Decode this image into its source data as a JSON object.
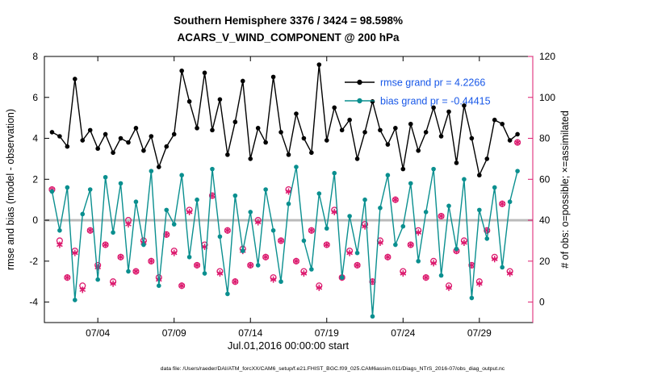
{
  "footer": {
    "data_file": "data file: /Users/raeder/DAI/ATM_forcXX/CAM6_setup/f.e21.FHIST_BGC.f09_025.CAM6assim.011/Diags_NTrS_2016-07/obs_diag_output.nc"
  },
  "colors": {
    "rmse": "#000000",
    "bias": "#0a8f8f",
    "obs": "#dc1a6e",
    "legend_text": "#1757e8",
    "zero_line": "#bbbbbb",
    "axes": "#000000"
  },
  "chart_data": {
    "type": "line",
    "title": "Southern Hemisphere 3376 / 3424 = 98.598%",
    "subtitle": "ACARS_V_WIND_COMPONENT @ 200 hPa",
    "xlabel": "Jul.01,2016 00:00:00 start",
    "ylabel_left": "rmse and bias (model - observation)",
    "ylabel_right": "# of obs: o=possible; ×=assimilated",
    "grid": "off",
    "legend_position": "top-right-inside",
    "x_domain_days": [
      -0.5,
      31.5
    ],
    "x_ticks": [
      {
        "day": 3,
        "label": "07/04"
      },
      {
        "day": 8,
        "label": "07/09"
      },
      {
        "day": 13,
        "label": "07/14"
      },
      {
        "day": 18,
        "label": "07/19"
      },
      {
        "day": 23,
        "label": "07/24"
      },
      {
        "day": 28,
        "label": "07/29"
      }
    ],
    "ylim_left": [
      -5,
      8
    ],
    "yticks_left": [
      -4,
      -2,
      0,
      2,
      4,
      6,
      8
    ],
    "ylim_right": [
      -10,
      120
    ],
    "yticks_right": [
      0,
      20,
      40,
      60,
      80,
      100,
      120
    ],
    "points_per_day": 2,
    "zero_line": 0,
    "legend": [
      {
        "label": "rmse grand pr = 4.2266",
        "color": "#000000"
      },
      {
        "label": "bias grand pr = -0.44415",
        "color": "#0a8f8f"
      }
    ],
    "series": [
      {
        "name": "rmse",
        "axis": "left",
        "style": "line-dot",
        "color": "#000000",
        "grand_mean": 4.2266,
        "values": [
          4.3,
          4.1,
          3.6,
          6.9,
          3.9,
          4.4,
          3.5,
          4.2,
          3.3,
          4.0,
          3.8,
          4.5,
          3.4,
          4.1,
          2.6,
          3.6,
          4.2,
          7.3,
          5.8,
          4.5,
          7.2,
          4.4,
          5.9,
          3.2,
          4.8,
          6.8,
          3.0,
          4.5,
          3.8,
          7.0,
          4.3,
          3.2,
          5.2,
          4.0,
          3.3,
          7.6,
          3.9,
          5.5,
          4.4,
          4.9,
          3.0,
          4.3,
          5.8,
          4.4,
          3.7,
          4.5,
          2.5,
          4.7,
          3.4,
          4.3,
          5.5,
          4.1,
          5.3,
          2.8,
          5.6,
          4.0,
          2.2,
          3.0,
          4.9,
          4.7,
          3.9,
          4.2
        ]
      },
      {
        "name": "bias",
        "axis": "left",
        "style": "line-dot",
        "color": "#0a8f8f",
        "grand_mean": -0.44415,
        "values": [
          1.4,
          -0.5,
          1.6,
          -3.9,
          0.3,
          1.5,
          -2.9,
          2.1,
          -0.6,
          1.8,
          -2.5,
          0.9,
          -1.2,
          2.4,
          -3.2,
          0.5,
          -0.2,
          2.2,
          -1.8,
          1.0,
          -2.6,
          2.5,
          -0.8,
          -3.6,
          1.2,
          -1.5,
          0.4,
          -2.2,
          1.5,
          -0.5,
          -3.0,
          0.8,
          2.6,
          -1.0,
          -2.4,
          1.3,
          -0.4,
          2.3,
          -2.8,
          0.2,
          -1.6,
          1.0,
          -4.7,
          0.6,
          2.2,
          -1.2,
          -0.3,
          1.8,
          -2.0,
          0.4,
          2.5,
          -2.7,
          0.7,
          -1.4,
          2.0,
          -3.8,
          0.5,
          -0.9,
          1.6,
          -2.3,
          0.9,
          2.4
        ]
      },
      {
        "name": "possible",
        "axis": "right",
        "style": "circle",
        "color": "#dc1a6e",
        "values": [
          55,
          30,
          12,
          25,
          8,
          35,
          18,
          28,
          10,
          22,
          40,
          15,
          30,
          20,
          12,
          33,
          25,
          8,
          45,
          18,
          28,
          52,
          15,
          35,
          10,
          26,
          18,
          40,
          22,
          12,
          30,
          55,
          20,
          15,
          35,
          8,
          28,
          45,
          12,
          25,
          18,
          38,
          10,
          30,
          22,
          50,
          15,
          28,
          35,
          12,
          20,
          42,
          8,
          25,
          30,
          18,
          10,
          35,
          22,
          48,
          15,
          78
        ]
      },
      {
        "name": "assimilated",
        "axis": "right",
        "style": "asterisk",
        "color": "#dc1a6e",
        "values": [
          55,
          28,
          12,
          24,
          6,
          35,
          17,
          28,
          9,
          22,
          38,
          15,
          29,
          20,
          11,
          33,
          24,
          8,
          44,
          18,
          27,
          52,
          14,
          35,
          10,
          25,
          18,
          39,
          22,
          11,
          30,
          54,
          20,
          14,
          35,
          7,
          28,
          44,
          12,
          24,
          18,
          37,
          10,
          29,
          22,
          50,
          14,
          28,
          34,
          12,
          19,
          42,
          7,
          25,
          29,
          18,
          9,
          35,
          21,
          48,
          14,
          78
        ]
      }
    ]
  }
}
